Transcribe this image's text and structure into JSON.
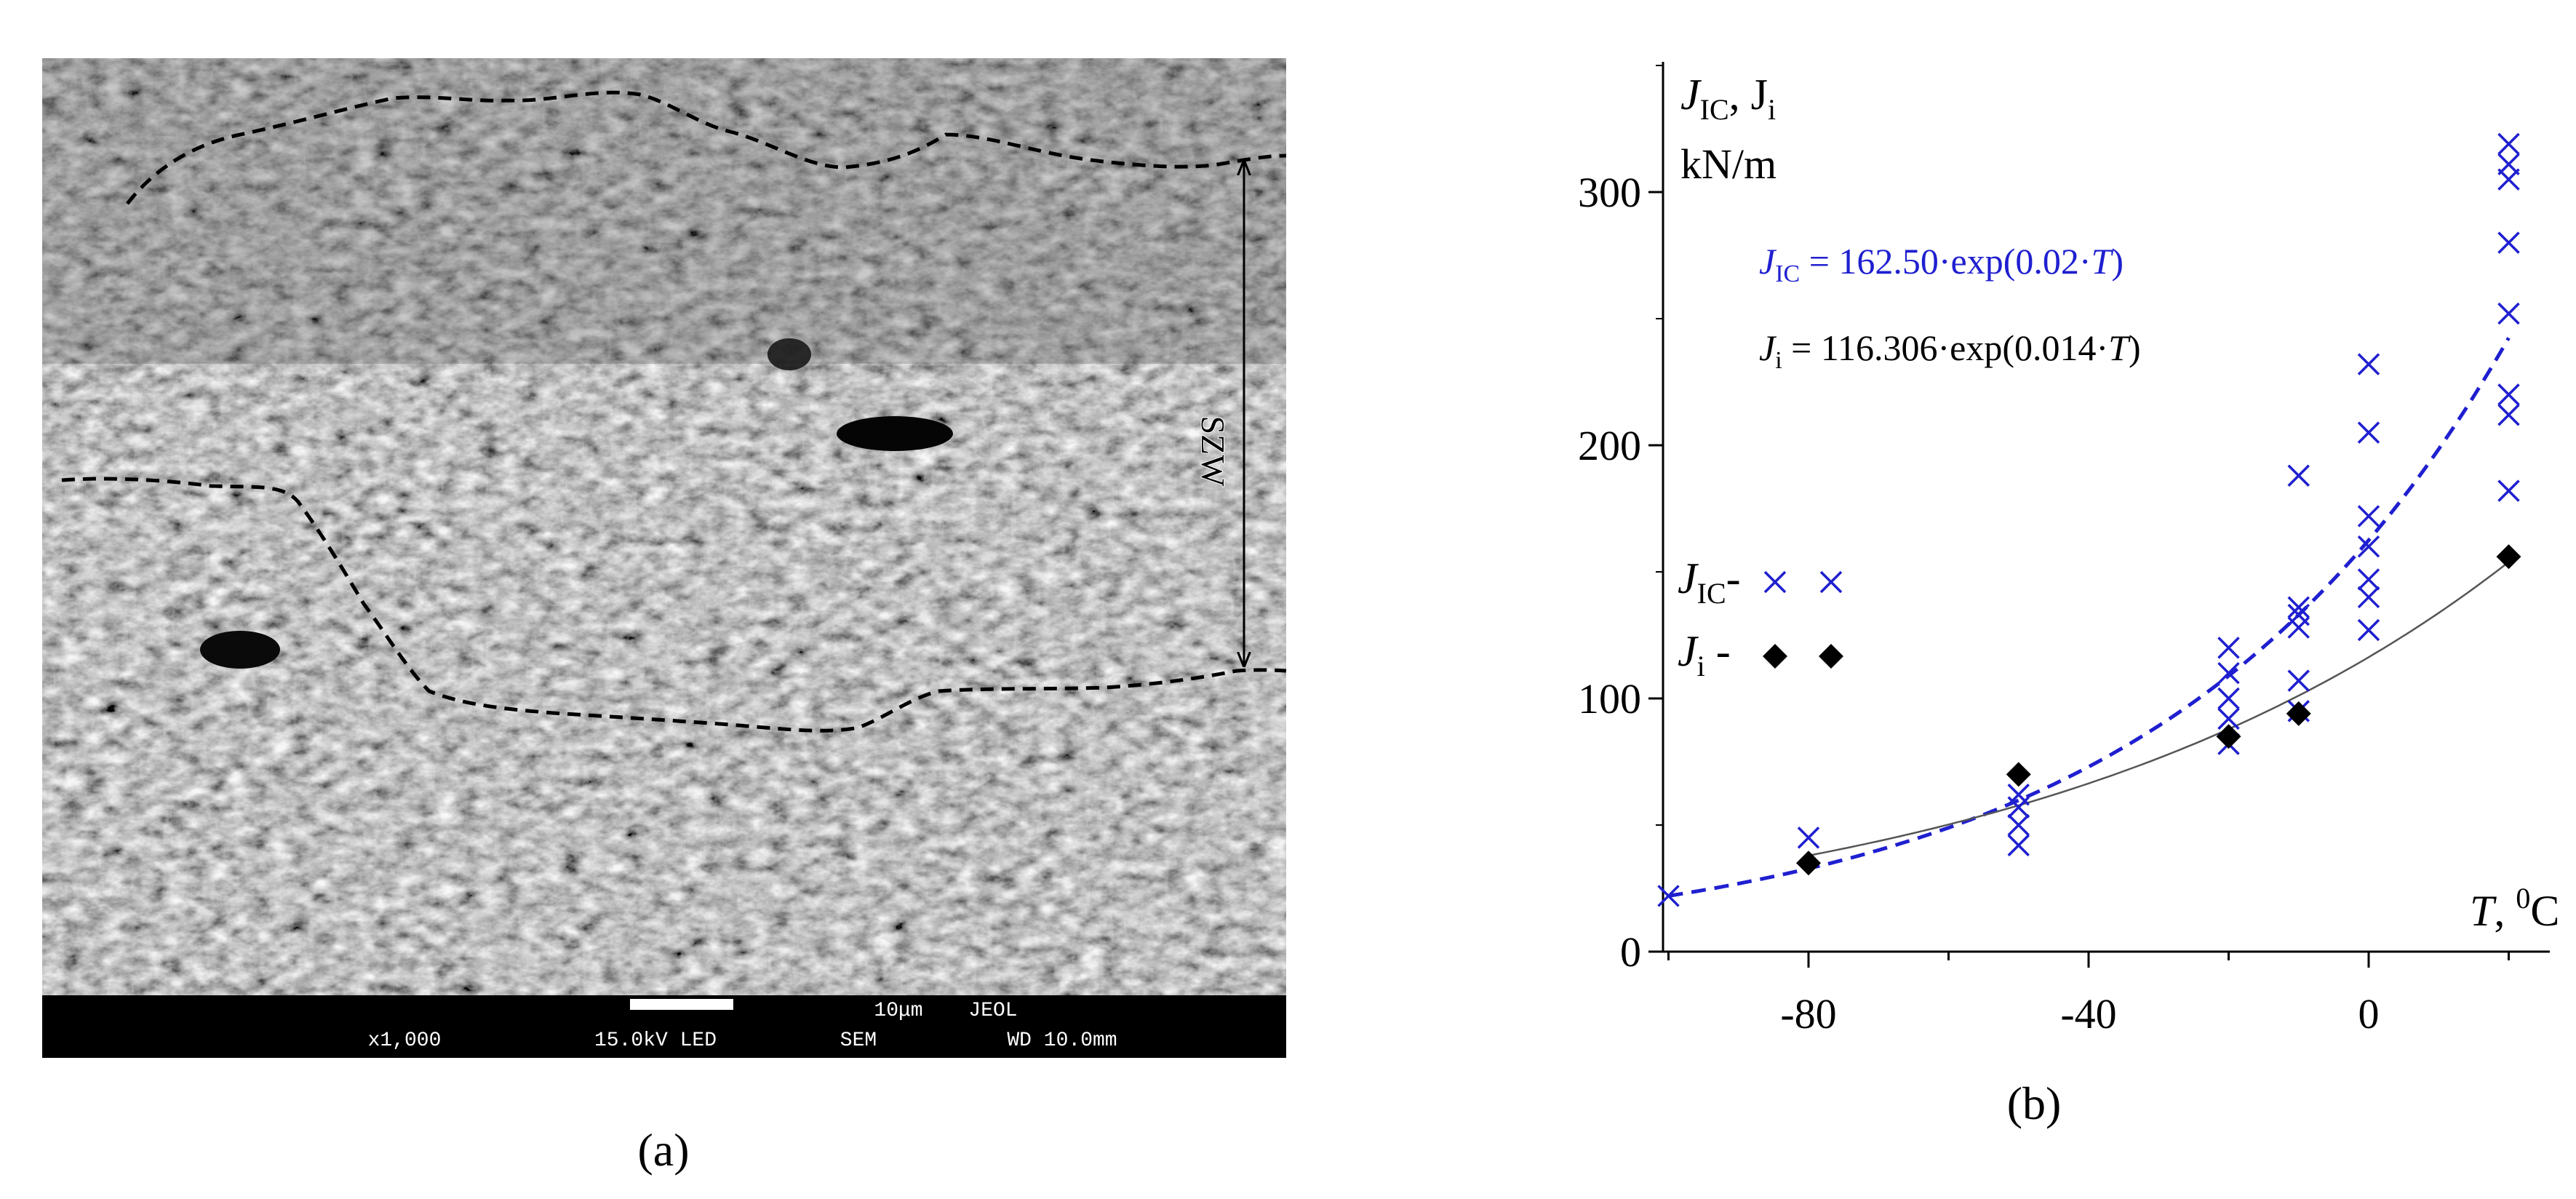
{
  "panel_a": {
    "label": "(a)",
    "annotation": "SZW",
    "sem_bar": {
      "scale": "10μm",
      "brand": "JEOL",
      "magnification": "x1,000",
      "voltage": "15.0kV LED",
      "mode": "SEM",
      "working_distance": "WD 10.0mm"
    }
  },
  "panel_b": {
    "label": "(b)",
    "y_label": {
      "main": "J",
      "sub1": "IC",
      "sep": ", J",
      "sub2": "i",
      "units": "kN/m"
    },
    "x_label": {
      "var": "T",
      "rest": ", ",
      "sup": "0",
      "unit": "C"
    },
    "eq_jic": {
      "lhs": "J",
      "sub": "IC",
      "rhs": " = 162.50·exp(0.02·",
      "var": "T",
      "close": ")"
    },
    "eq_ji": {
      "lhs": "J",
      "sub": "i",
      "rhs": " = 116.306·exp(0.014·",
      "var": "T",
      "close": ")"
    },
    "legend": {
      "jic": {
        "main": "J",
        "sub": "IC",
        "dash": "-"
      },
      "ji": {
        "main": "J",
        "sub": "i",
        "dash": " -"
      }
    },
    "colors": {
      "jic": "#1f1fd0",
      "ji": "#000000",
      "axis": "#000000"
    }
  },
  "chart_data": {
    "type": "scatter",
    "x_ticks": [
      -80,
      -40,
      0
    ],
    "y_ticks": [
      0,
      100,
      200,
      300
    ],
    "xlim": [
      -100,
      20
    ],
    "ylim": [
      0,
      350
    ],
    "grid": false,
    "legend_position": "left",
    "series": [
      {
        "name": "JIC",
        "marker": "x",
        "points": [
          [
            -100,
            22
          ],
          [
            -80,
            45
          ],
          [
            -50,
            42
          ],
          [
            -50,
            50
          ],
          [
            -50,
            57
          ],
          [
            -50,
            62
          ],
          [
            -20,
            82
          ],
          [
            -20,
            92
          ],
          [
            -20,
            100
          ],
          [
            -20,
            110
          ],
          [
            -20,
            120
          ],
          [
            -10,
            95
          ],
          [
            -10,
            107
          ],
          [
            -10,
            128
          ],
          [
            -10,
            133
          ],
          [
            -10,
            136
          ],
          [
            -10,
            188
          ],
          [
            0,
            127
          ],
          [
            0,
            140
          ],
          [
            0,
            147
          ],
          [
            0,
            160
          ],
          [
            0,
            172
          ],
          [
            0,
            205
          ],
          [
            0,
            232
          ],
          [
            20,
            182
          ],
          [
            20,
            212
          ],
          [
            20,
            220
          ],
          [
            20,
            252
          ],
          [
            20,
            280
          ],
          [
            20,
            305
          ],
          [
            20,
            311
          ],
          [
            20,
            319
          ]
        ]
      },
      {
        "name": "Ji",
        "marker": "diamond",
        "points": [
          [
            -80,
            35
          ],
          [
            -50,
            70
          ],
          [
            -20,
            85
          ],
          [
            -10,
            94
          ],
          [
            20,
            156
          ]
        ]
      }
    ],
    "fits": [
      {
        "series": "JIC",
        "a": 162.5,
        "b": 0.02,
        "x_range": [
          -100,
          20
        ],
        "style": "dashed"
      },
      {
        "series": "Ji",
        "a": 116.306,
        "b": 0.014,
        "x_range": [
          -80,
          20
        ],
        "style": "solid"
      }
    ]
  }
}
